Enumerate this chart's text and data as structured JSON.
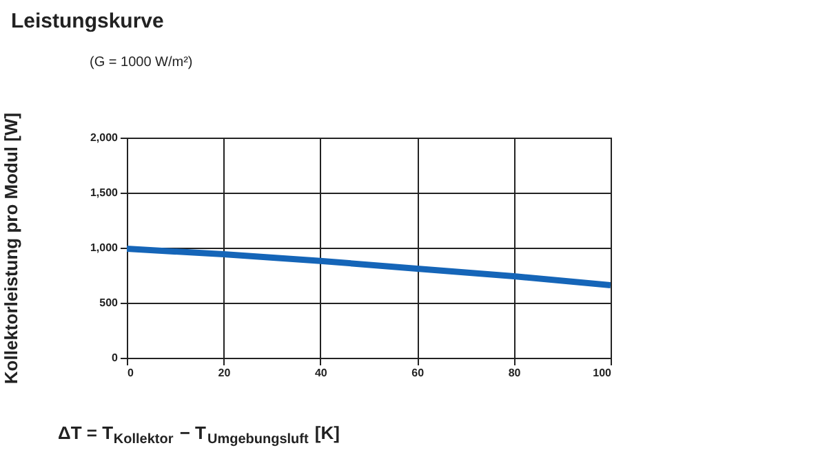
{
  "chart_data": {
    "type": "line",
    "title": "Leistungskurve",
    "subtitle": "(G = 1000 W/m²)",
    "xlabel": "ΔT = T$_{Kollektor}$ − T$_{Umgebungsluft}$ [K]",
    "ylabel": "Kollektorleistung pro Modul [W]",
    "x": [
      0,
      20,
      40,
      60,
      80,
      100
    ],
    "series": [
      {
        "color": "#1565b8",
        "values": [
          990,
          940,
          880,
          810,
          740,
          660
        ]
      }
    ],
    "xlim": [
      0,
      100
    ],
    "xticks": [
      0,
      20,
      40,
      60,
      80,
      100
    ],
    "ylim": [
      0,
      2000
    ],
    "yticks": [
      0,
      500,
      {
        "value": 1000,
        "label": "1,000"
      },
      {
        "value": 1500,
        "label": "1,500"
      },
      {
        "value": 2000,
        "label": "2,000"
      }
    ],
    "grid": true,
    "legend": false,
    "marker": "none",
    "line_style": "solid"
  }
}
